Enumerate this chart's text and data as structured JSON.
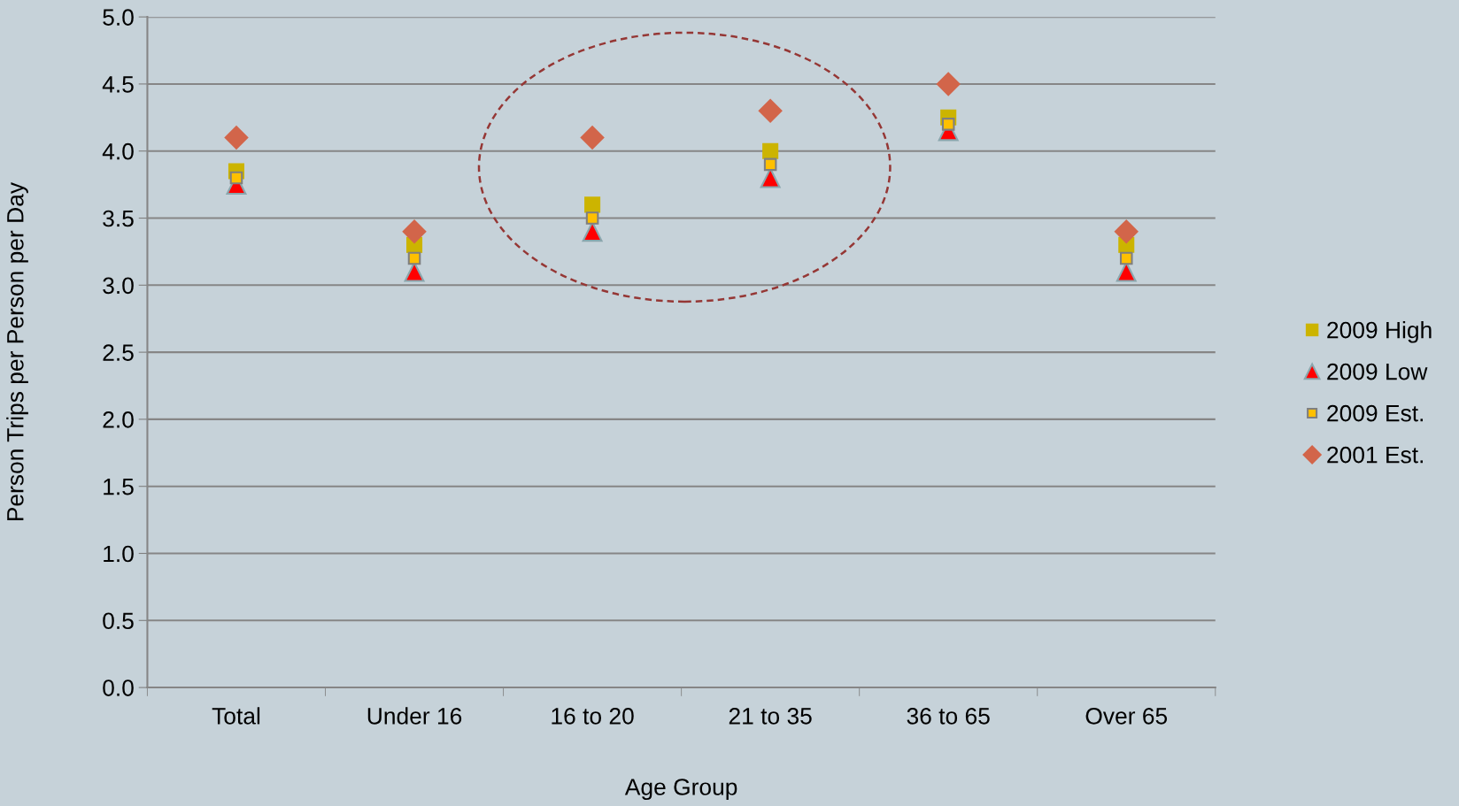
{
  "chart_data": {
    "type": "scatter",
    "xlabel": "Age Group",
    "ylabel": "Person Trips per Person per Day",
    "categories": [
      "Total",
      "Under 16",
      "16 to 20",
      "21 to 35",
      "36 to 65",
      "Over 65"
    ],
    "series": [
      {
        "name": "2009 High",
        "color": "#ccb400",
        "marker": "square",
        "values": [
          3.85,
          3.3,
          3.6,
          4.0,
          4.25,
          3.3
        ]
      },
      {
        "name": "2009 Low",
        "color": "#ff0000",
        "marker": "triangle",
        "values": [
          3.75,
          3.1,
          3.4,
          3.8,
          4.15,
          3.1
        ]
      },
      {
        "name": "2009 Est.",
        "color": "#ffc000",
        "marker": "square",
        "values": [
          3.8,
          3.2,
          3.5,
          3.9,
          4.2,
          3.2
        ]
      },
      {
        "name": "2001 Est.",
        "color": "#d2654a",
        "marker": "diamond",
        "values": [
          4.1,
          3.4,
          4.1,
          4.3,
          4.5,
          3.4
        ]
      }
    ],
    "ylim": [
      0,
      5
    ],
    "yticks": [
      {
        "value": 0,
        "label": "0.0"
      },
      {
        "value": 0.5,
        "label": "0.5"
      },
      {
        "value": 1,
        "label": "1.0"
      },
      {
        "value": 1.5,
        "label": "1.5"
      },
      {
        "value": 2,
        "label": "2.0"
      },
      {
        "value": 2.5,
        "label": "2.5"
      },
      {
        "value": 3,
        "label": "3.0"
      },
      {
        "value": 3.5,
        "label": "3.5"
      },
      {
        "value": 4,
        "label": "4.0"
      },
      {
        "value": 4.5,
        "label": "4.5"
      },
      {
        "value": 5,
        "label": "5.0"
      }
    ],
    "grid": "y",
    "legend": "right"
  }
}
